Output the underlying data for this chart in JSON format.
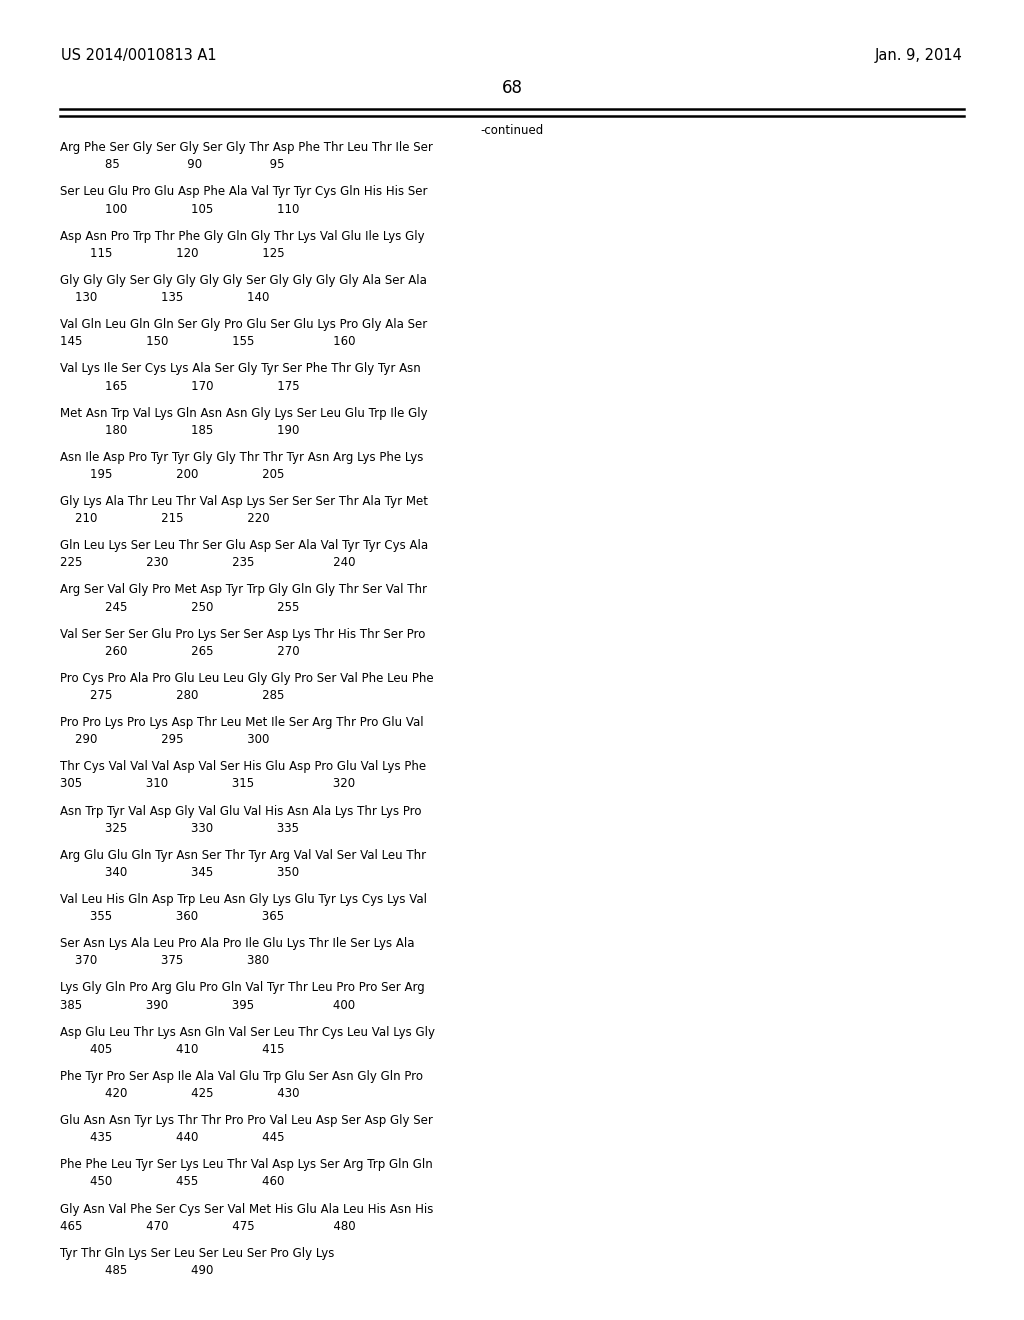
{
  "header_left": "US 2014/0010813 A1",
  "header_right": "Jan. 9, 2014",
  "page_number": "68",
  "continued_label": "-continued",
  "monospace_font": "Courier New",
  "font_size_header": 10.5,
  "font_size_body": 8.5,
  "font_size_page": 12,
  "sequence_blocks": [
    {
      "aa": "Arg Phe Ser Gly Ser Gly Ser Gly Thr Asp Phe Thr Leu Thr Ile Ser",
      "nums": "            85                  90                  95"
    },
    {
      "aa": "Ser Leu Glu Pro Glu Asp Phe Ala Val Tyr Tyr Cys Gln His His Ser",
      "nums": "            100                 105                 110"
    },
    {
      "aa": "Asp Asn Pro Trp Thr Phe Gly Gln Gly Thr Lys Val Glu Ile Lys Gly",
      "nums": "        115                 120                 125"
    },
    {
      "aa": "Gly Gly Gly Ser Gly Gly Gly Gly Ser Gly Gly Gly Gly Ala Ser Ala",
      "nums": "    130                 135                 140"
    },
    {
      "aa": "Val Gln Leu Gln Gln Ser Gly Pro Glu Ser Glu Lys Pro Gly Ala Ser",
      "nums": "145                 150                 155                     160"
    },
    {
      "aa": "Val Lys Ile Ser Cys Lys Ala Ser Gly Tyr Ser Phe Thr Gly Tyr Asn",
      "nums": "            165                 170                 175"
    },
    {
      "aa": "Met Asn Trp Val Lys Gln Asn Asn Gly Lys Ser Leu Glu Trp Ile Gly",
      "nums": "            180                 185                 190"
    },
    {
      "aa": "Asn Ile Asp Pro Tyr Tyr Gly Gly Thr Thr Tyr Asn Arg Lys Phe Lys",
      "nums": "        195                 200                 205"
    },
    {
      "aa": "Gly Lys Ala Thr Leu Thr Val Asp Lys Ser Ser Ser Thr Ala Tyr Met",
      "nums": "    210                 215                 220"
    },
    {
      "aa": "Gln Leu Lys Ser Leu Thr Ser Glu Asp Ser Ala Val Tyr Tyr Cys Ala",
      "nums": "225                 230                 235                     240"
    },
    {
      "aa": "Arg Ser Val Gly Pro Met Asp Tyr Trp Gly Gln Gly Thr Ser Val Thr",
      "nums": "            245                 250                 255"
    },
    {
      "aa": "Val Ser Ser Ser Glu Pro Lys Ser Ser Asp Lys Thr His Thr Ser Pro",
      "nums": "            260                 265                 270"
    },
    {
      "aa": "Pro Cys Pro Ala Pro Glu Leu Leu Gly Gly Pro Ser Val Phe Leu Phe",
      "nums": "        275                 280                 285"
    },
    {
      "aa": "Pro Pro Lys Pro Lys Asp Thr Leu Met Ile Ser Arg Thr Pro Glu Val",
      "nums": "    290                 295                 300"
    },
    {
      "aa": "Thr Cys Val Val Val Asp Val Ser His Glu Asp Pro Glu Val Lys Phe",
      "nums": "305                 310                 315                     320"
    },
    {
      "aa": "Asn Trp Tyr Val Asp Gly Val Glu Val His Asn Ala Lys Thr Lys Pro",
      "nums": "            325                 330                 335"
    },
    {
      "aa": "Arg Glu Glu Gln Tyr Asn Ser Thr Tyr Arg Val Val Ser Val Leu Thr",
      "nums": "            340                 345                 350"
    },
    {
      "aa": "Val Leu His Gln Asp Trp Leu Asn Gly Lys Glu Tyr Lys Cys Lys Val",
      "nums": "        355                 360                 365"
    },
    {
      "aa": "Ser Asn Lys Ala Leu Pro Ala Pro Ile Glu Lys Thr Ile Ser Lys Ala",
      "nums": "    370                 375                 380"
    },
    {
      "aa": "Lys Gly Gln Pro Arg Glu Pro Gln Val Tyr Thr Leu Pro Pro Ser Arg",
      "nums": "385                 390                 395                     400"
    },
    {
      "aa": "Asp Glu Leu Thr Lys Asn Gln Val Ser Leu Thr Cys Leu Val Lys Gly",
      "nums": "        405                 410                 415"
    },
    {
      "aa": "Phe Tyr Pro Ser Asp Ile Ala Val Glu Trp Glu Ser Asn Gly Gln Pro",
      "nums": "            420                 425                 430"
    },
    {
      "aa": "Glu Asn Asn Tyr Lys Thr Thr Pro Pro Val Leu Asp Ser Asp Gly Ser",
      "nums": "        435                 440                 445"
    },
    {
      "aa": "Phe Phe Leu Tyr Ser Lys Leu Thr Val Asp Lys Ser Arg Trp Gln Gln",
      "nums": "        450                 455                 460"
    },
    {
      "aa": "Gly Asn Val Phe Ser Cys Ser Val Met His Glu Ala Leu His Asn His",
      "nums": "465                 470                 475                     480"
    },
    {
      "aa": "Tyr Thr Gln Lys Ser Leu Ser Leu Ser Pro Gly Lys",
      "nums": "            485                 490"
    }
  ]
}
